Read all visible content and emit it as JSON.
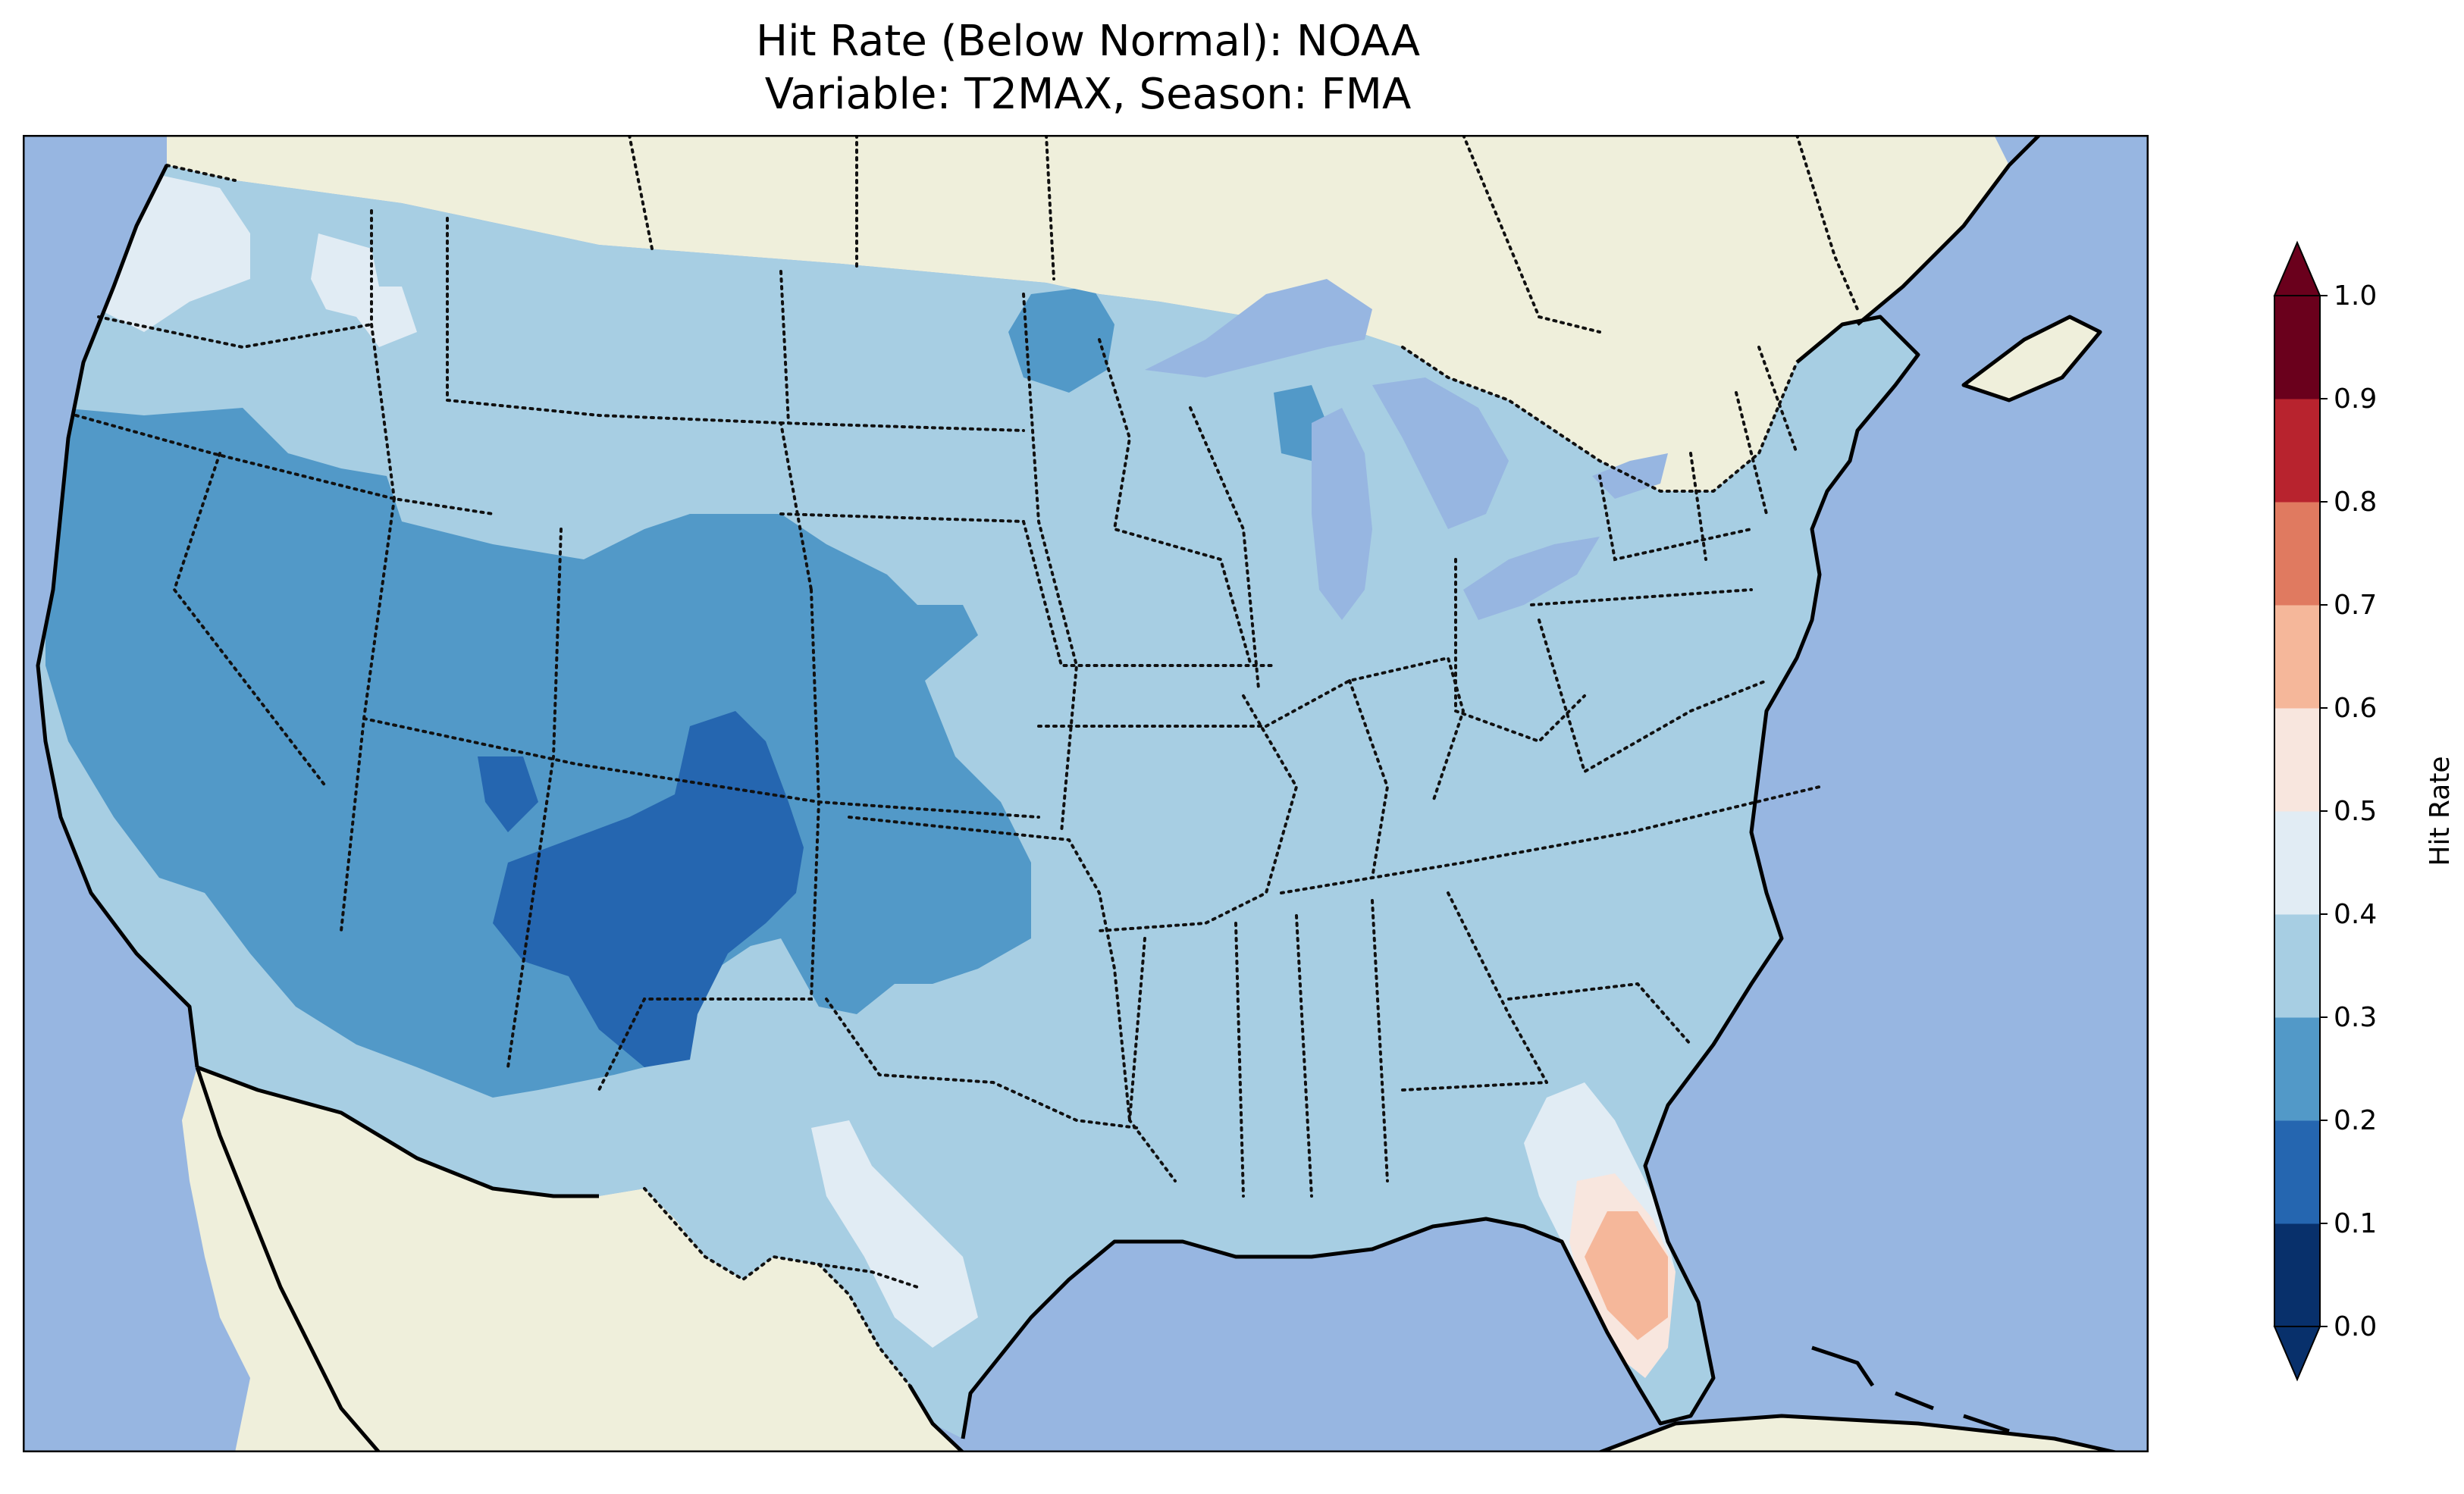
{
  "title": {
    "line1": "Hit Rate (Below Normal): NOAA",
    "line2": "Variable: T2MAX, Season: FMA"
  },
  "colorbar": {
    "label": "Hit Rate",
    "ticks": [
      "0.0",
      "0.1",
      "0.2",
      "0.3",
      "0.4",
      "0.5",
      "0.6",
      "0.7",
      "0.8",
      "0.9",
      "1.0"
    ],
    "colors": [
      "#053061",
      "#2166ac",
      "#4393c3",
      "#92c5de",
      "#d1e5f0",
      "#f7f7f7",
      "#fddbc7",
      "#f4a582",
      "#d6604d",
      "#b2182b",
      "#67001f"
    ],
    "display_colors": [
      "#08306b",
      "#2566b0",
      "#5299c8",
      "#a7cee3",
      "#e1ecf4",
      "#f8e6de",
      "#f5b79a",
      "#e07a60",
      "#b8232e",
      "#6a001c"
    ],
    "extend": "both"
  },
  "map": {
    "ocean_color": "#97b6e1",
    "land_color": "#efefdb",
    "lake_color": "#97b6e1"
  }
}
